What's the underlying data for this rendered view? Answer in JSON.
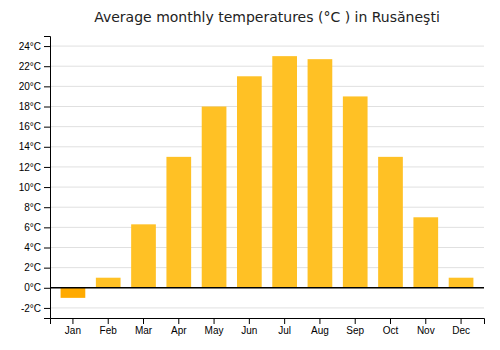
{
  "chart_data": {
    "type": "bar",
    "title": "Average monthly temperatures (°C ) in Rusăneşti",
    "categories": [
      "Jan",
      "Feb",
      "Mar",
      "Apr",
      "May",
      "Jun",
      "Jul",
      "Aug",
      "Sep",
      "Oct",
      "Nov",
      "Dec"
    ],
    "values": [
      -1.0,
      1.0,
      6.3,
      13.0,
      18.0,
      21.0,
      23.0,
      22.7,
      19.0,
      13.0,
      7.0,
      1.0
    ],
    "colors": [
      "#FFAA00",
      "#FFC125",
      "#FFC125",
      "#FFC125",
      "#FFC125",
      "#FFC125",
      "#FFC125",
      "#FFC125",
      "#FFC125",
      "#FFC125",
      "#FFC125",
      "#FFC125"
    ],
    "ylim": [
      -3,
      25
    ],
    "yticks": [
      {
        "value": -2,
        "label": "-2°C"
      },
      {
        "value": 0,
        "label": "0°C"
      },
      {
        "value": 2,
        "label": "2°C"
      },
      {
        "value": 4,
        "label": "4°C"
      },
      {
        "value": 6,
        "label": "6°C"
      },
      {
        "value": 8,
        "label": "8°C"
      },
      {
        "value": 10,
        "label": "10°C"
      },
      {
        "value": 12,
        "label": "12°C"
      },
      {
        "value": 14,
        "label": "14°C"
      },
      {
        "value": 16,
        "label": "16°C"
      },
      {
        "value": 18,
        "label": "18°C"
      },
      {
        "value": 20,
        "label": "20°C"
      },
      {
        "value": 22,
        "label": "22°C"
      },
      {
        "value": 24,
        "label": "24°C"
      }
    ],
    "grid": true
  }
}
